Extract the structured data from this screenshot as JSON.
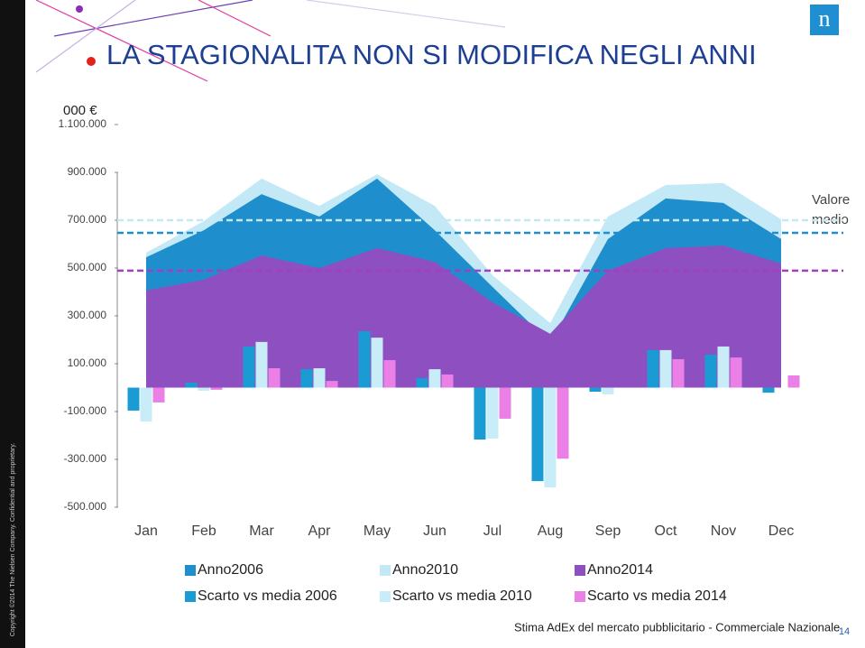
{
  "slide": {
    "logo": "n",
    "copyright": "Copyright ©2014 The Nielsen Company. Confidential and proprietary.",
    "footer": "Stima AdEx del mercato pubblicitario - Commerciale Nazionale",
    "page_number": "14"
  },
  "chart_data": {
    "type": "combo",
    "title": "LA STAGIONALITA NON SI MODIFICA NEGLI ANNI",
    "y_unit_label": "000 €",
    "categories": [
      "Jan",
      "Feb",
      "Mar",
      "Apr",
      "May",
      "Jun",
      "Jul",
      "Aug",
      "Sep",
      "Oct",
      "Nov",
      "Dec"
    ],
    "ylim": [
      -500000,
      1100000
    ],
    "yticks": [
      {
        "value": 1100000,
        "label": "1.100.000"
      },
      {
        "value": 900000,
        "label": "900.000"
      },
      {
        "value": 700000,
        "label": "700.000"
      },
      {
        "value": 500000,
        "label": "500.000"
      },
      {
        "value": 300000,
        "label": "300.000"
      },
      {
        "value": 100000,
        "label": "100.000"
      },
      {
        "value": -100000,
        "label": "-100.000"
      },
      {
        "value": -300000,
        "label": "-300.000"
      },
      {
        "value": -500000,
        "label": "-500.000"
      }
    ],
    "series": [
      {
        "name": "Anno2010",
        "type": "area",
        "color": "#c3e8f6",
        "values": [
          564000,
          696000,
          874000,
          760000,
          892000,
          760000,
          470000,
          270000,
          715000,
          847000,
          855000,
          704000
        ]
      },
      {
        "name": "Anno2006",
        "type": "area",
        "color": "#1e8fcc",
        "values": [
          545000,
          658000,
          809000,
          715000,
          874000,
          658000,
          421000,
          187000,
          621000,
          791000,
          772000,
          621000
        ]
      },
      {
        "name": "Anno2014",
        "type": "area",
        "color": "#8e4fc0",
        "values": [
          406000,
          451000,
          553000,
          500000,
          583000,
          526000,
          357000,
          225000,
          489000,
          583000,
          594000,
          519000
        ]
      },
      {
        "name": "Scarto vs media 2006",
        "type": "bar",
        "color": "#1a9bd4",
        "values": [
          -96000,
          21000,
          172000,
          77000,
          236000,
          40000,
          -217000,
          -391000,
          -17000,
          157000,
          138000,
          -21000
        ]
      },
      {
        "name": "Scarto vs media 2010",
        "type": "bar",
        "color": "#c8ecf8",
        "values": [
          -142000,
          -13000,
          191000,
          81000,
          209000,
          77000,
          -213000,
          -417000,
          -28000,
          157000,
          172000,
          0
        ]
      },
      {
        "name": "Scarto vs media 2014",
        "type": "bar",
        "color": "#ea80e6",
        "values": [
          -62000,
          -9000,
          81000,
          28000,
          115000,
          55000,
          -130000,
          -297000,
          0,
          119000,
          126000,
          51000
        ]
      }
    ],
    "mean_label": "Valore medio",
    "mean_lines": [
      {
        "value": 700000,
        "color": "#c3e8f6"
      },
      {
        "value": 647000,
        "color": "#1e8fcc"
      },
      {
        "value": 489000,
        "color": "#a040c0"
      }
    ],
    "legend_order": [
      1,
      0,
      2,
      3,
      4,
      5
    ]
  }
}
